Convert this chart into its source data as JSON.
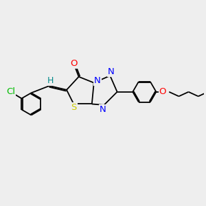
{
  "bg_color": "#eeeeee",
  "bond_color": "#000000",
  "atoms": {
    "Cl": {
      "color": "#00bb00"
    },
    "S": {
      "color": "#cccc00"
    },
    "N": {
      "color": "#0000ff"
    },
    "O": {
      "color": "#ff0000"
    },
    "H": {
      "color": "#008888"
    }
  },
  "lw": 1.3,
  "fontsize": 9.5
}
